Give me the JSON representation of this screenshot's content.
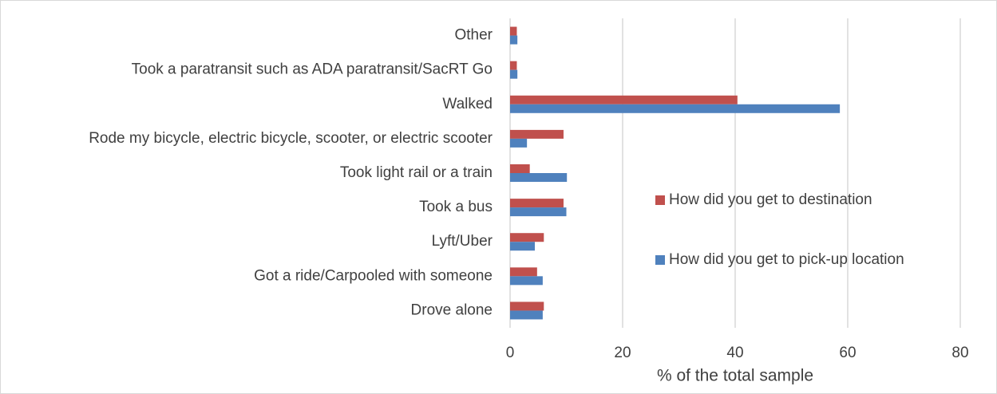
{
  "chart_data": {
    "type": "hbar",
    "xlabel": "% of the total sample",
    "categories": [
      "Other",
      "Took a paratransit such as ADA paratransit/SacRT Go",
      "Walked",
      "Rode my bicycle, electric bicycle, scooter, or electric scooter",
      "Took light rail or a train",
      "Took a bus",
      "Lyft/Uber",
      "Got a ride/Carpooled with someone",
      "Drove alone"
    ],
    "series": [
      {
        "name": "How did you get to destination",
        "color": "#c0504d",
        "values": [
          1.2,
          1.2,
          40.4,
          9.5,
          3.5,
          9.5,
          6.0,
          4.8,
          6.0
        ]
      },
      {
        "name": "How did you get to pick-up location",
        "color": "#4f81bd",
        "values": [
          1.3,
          1.3,
          58.6,
          3.0,
          10.1,
          10.0,
          4.4,
          5.8,
          5.8
        ]
      }
    ],
    "xlim": [
      0,
      80
    ],
    "xticks": [
      0,
      20,
      40,
      60,
      80
    ],
    "grid": true
  }
}
